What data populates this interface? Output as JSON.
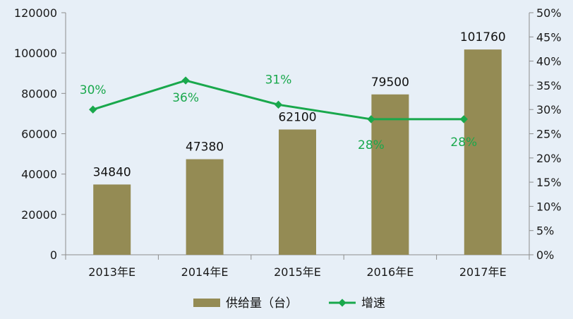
{
  "chart_data": {
    "type": "bar",
    "categories": [
      "2013年E",
      "2014年E",
      "2015年E",
      "2016年E",
      "2017年E"
    ],
    "series": [
      {
        "name": "供给量（台）",
        "type": "bar",
        "axis": "left",
        "values": [
          34840,
          47380,
          62100,
          79500,
          101760
        ],
        "labels": [
          "34840",
          "47380",
          "62100",
          "79500",
          "101760"
        ],
        "color": "#948b54"
      },
      {
        "name": "增速",
        "type": "line",
        "axis": "right",
        "values": [
          30,
          36,
          31,
          28,
          28
        ],
        "labels": [
          "30%",
          "36%",
          "31%",
          "28%",
          "28%"
        ],
        "color": "#19a84c"
      }
    ],
    "y_left": {
      "min": 0,
      "max": 120000,
      "ticks": [
        "0",
        "20000",
        "40000",
        "60000",
        "80000",
        "100000",
        "120000"
      ]
    },
    "y_right": {
      "min": 0,
      "max": 50,
      "ticks": [
        "0%",
        "5%",
        "10%",
        "15%",
        "20%",
        "25%",
        "30%",
        "35%",
        "40%",
        "45%",
        "50%"
      ]
    },
    "legend_position": "bottom",
    "grid": false,
    "background": "#e7eff7"
  }
}
